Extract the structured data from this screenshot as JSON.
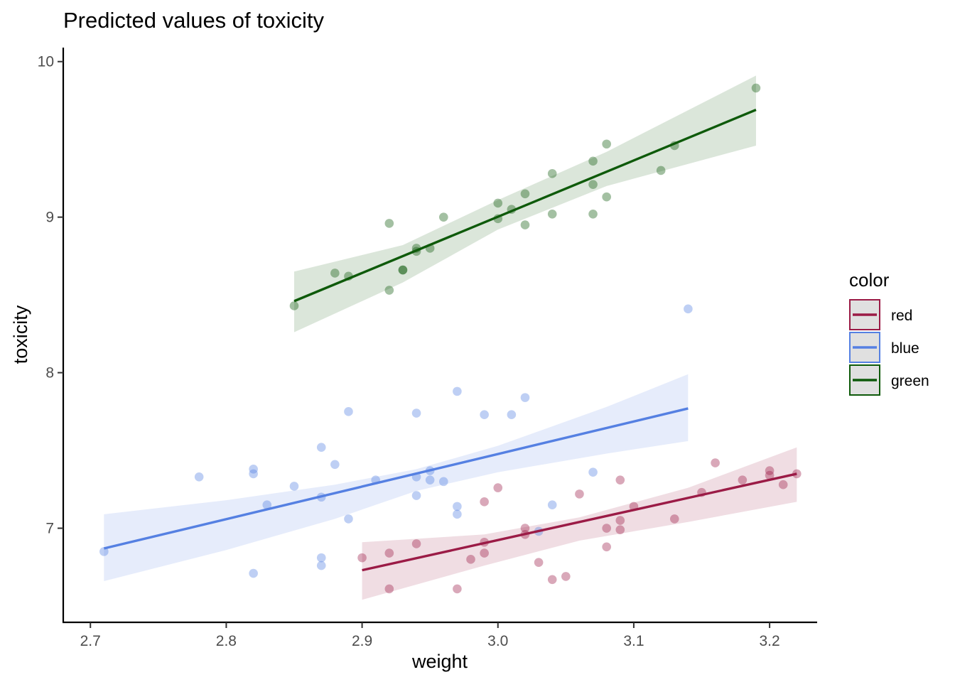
{
  "chart_data": {
    "type": "scatter",
    "title": "Predicted values of toxicity",
    "xlabel": "weight",
    "ylabel": "toxicity",
    "xlim": [
      2.68,
      3.235
    ],
    "ylim": [
      6.395,
      10.09
    ],
    "x_ticks": [
      2.7,
      2.8,
      2.9,
      3.0,
      3.1,
      3.2
    ],
    "x_tick_labels": [
      "2.7",
      "2.8",
      "2.9",
      "3.0",
      "3.1",
      "3.2"
    ],
    "y_ticks": [
      7,
      8,
      9,
      10
    ],
    "y_tick_labels": [
      "7",
      "8",
      "9",
      "10"
    ],
    "grid": false,
    "legend": {
      "title": "color",
      "placement": "right"
    },
    "series": [
      {
        "name": "red",
        "color": "#9b1b46",
        "points": [
          [
            2.9,
            6.81
          ],
          [
            2.92,
            6.84
          ],
          [
            2.92,
            6.61
          ],
          [
            2.94,
            6.9
          ],
          [
            2.97,
            6.61
          ],
          [
            2.98,
            6.8
          ],
          [
            2.99,
            6.84
          ],
          [
            2.99,
            6.91
          ],
          [
            2.99,
            7.17
          ],
          [
            3.0,
            7.26
          ],
          [
            3.02,
            6.96
          ],
          [
            3.02,
            7.0
          ],
          [
            3.03,
            6.78
          ],
          [
            3.04,
            6.67
          ],
          [
            3.05,
            6.69
          ],
          [
            3.06,
            7.22
          ],
          [
            3.08,
            6.88
          ],
          [
            3.08,
            7.0
          ],
          [
            3.09,
            6.99
          ],
          [
            3.09,
            7.05
          ],
          [
            3.09,
            7.31
          ],
          [
            3.1,
            7.14
          ],
          [
            3.13,
            7.06
          ],
          [
            3.15,
            7.23
          ],
          [
            3.16,
            7.42
          ],
          [
            3.18,
            7.31
          ],
          [
            3.2,
            7.34
          ],
          [
            3.2,
            7.37
          ],
          [
            3.21,
            7.28
          ],
          [
            3.22,
            7.35
          ]
        ],
        "fit": {
          "x": [
            2.9,
            3.22
          ],
          "y": [
            6.73,
            7.35
          ]
        },
        "band": {
          "x": [
            2.9,
            2.99,
            3.06,
            3.14,
            3.22
          ],
          "upper": [
            6.91,
            6.96,
            7.07,
            7.26,
            7.52
          ],
          "lower": [
            6.54,
            6.76,
            6.92,
            7.04,
            7.17
          ]
        }
      },
      {
        "name": "blue",
        "color": "#5580e2",
        "points": [
          [
            2.71,
            6.85
          ],
          [
            2.78,
            7.33
          ],
          [
            2.82,
            7.35
          ],
          [
            2.82,
            7.38
          ],
          [
            2.82,
            6.71
          ],
          [
            2.83,
            7.15
          ],
          [
            2.85,
            7.27
          ],
          [
            2.87,
            7.52
          ],
          [
            2.87,
            7.2
          ],
          [
            2.87,
            6.81
          ],
          [
            2.87,
            6.76
          ],
          [
            2.88,
            7.41
          ],
          [
            2.89,
            7.75
          ],
          [
            2.89,
            7.06
          ],
          [
            2.91,
            7.31
          ],
          [
            2.94,
            7.74
          ],
          [
            2.94,
            7.33
          ],
          [
            2.94,
            7.21
          ],
          [
            2.95,
            7.37
          ],
          [
            2.95,
            7.31
          ],
          [
            2.96,
            7.3
          ],
          [
            2.97,
            7.88
          ],
          [
            2.97,
            7.14
          ],
          [
            2.97,
            7.09
          ],
          [
            2.99,
            7.73
          ],
          [
            3.01,
            7.73
          ],
          [
            3.02,
            7.84
          ],
          [
            3.03,
            6.98
          ],
          [
            3.04,
            7.15
          ],
          [
            3.07,
            7.36
          ],
          [
            3.14,
            8.41
          ]
        ],
        "fit": {
          "x": [
            2.71,
            3.14
          ],
          "y": [
            6.87,
            7.77
          ]
        },
        "band": {
          "x": [
            2.71,
            2.8,
            2.88,
            2.94,
            3.0,
            3.08,
            3.14
          ],
          "upper": [
            7.09,
            7.18,
            7.28,
            7.38,
            7.53,
            7.78,
            7.99
          ],
          "lower": [
            6.66,
            6.86,
            7.06,
            7.24,
            7.36,
            7.48,
            7.56
          ]
        }
      },
      {
        "name": "green",
        "color": "#0e5a0a",
        "points": [
          [
            2.85,
            8.43
          ],
          [
            2.88,
            8.64
          ],
          [
            2.89,
            8.62
          ],
          [
            2.92,
            8.53
          ],
          [
            2.92,
            8.96
          ],
          [
            2.93,
            8.66
          ],
          [
            2.93,
            8.66
          ],
          [
            2.94,
            8.78
          ],
          [
            2.94,
            8.8
          ],
          [
            2.95,
            8.8
          ],
          [
            2.96,
            9.0
          ],
          [
            3.0,
            8.99
          ],
          [
            3.0,
            9.09
          ],
          [
            3.01,
            9.05
          ],
          [
            3.02,
            8.95
          ],
          [
            3.02,
            9.15
          ],
          [
            3.04,
            9.02
          ],
          [
            3.04,
            9.28
          ],
          [
            3.07,
            9.02
          ],
          [
            3.07,
            9.21
          ],
          [
            3.07,
            9.36
          ],
          [
            3.08,
            9.13
          ],
          [
            3.08,
            9.47
          ],
          [
            3.12,
            9.3
          ],
          [
            3.13,
            9.46
          ],
          [
            3.19,
            9.83
          ]
        ],
        "fit": {
          "x": [
            2.85,
            3.19
          ],
          "y": [
            8.46,
            9.69
          ]
        },
        "band": {
          "x": [
            2.85,
            2.93,
            3.0,
            3.08,
            3.19
          ],
          "upper": [
            8.65,
            8.82,
            9.11,
            9.42,
            9.91
          ],
          "lower": [
            8.26,
            8.58,
            8.92,
            9.2,
            9.46
          ]
        }
      }
    ]
  }
}
